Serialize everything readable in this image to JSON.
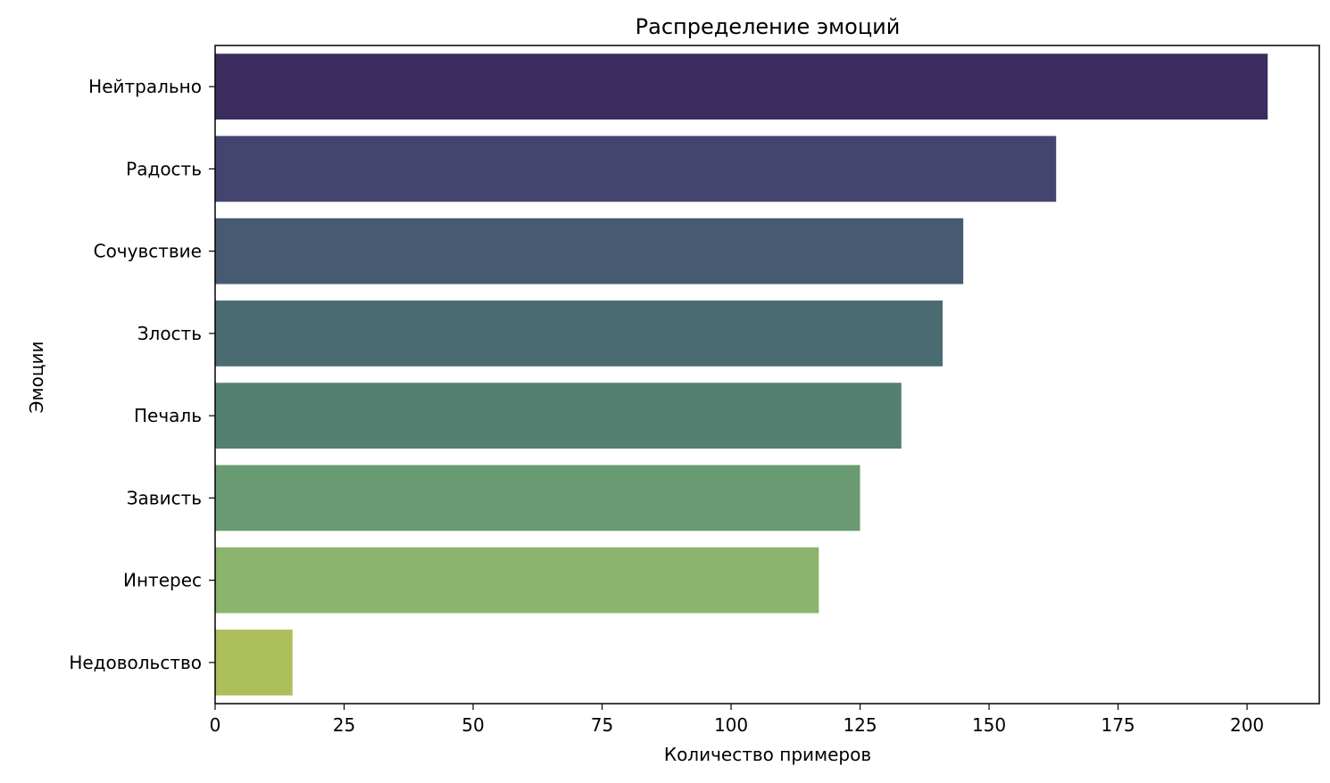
{
  "chart_data": {
    "type": "bar",
    "orientation": "horizontal",
    "title": "Распределение эмоций",
    "xlabel": "Количество примеров",
    "ylabel": "Эмоции",
    "categories": [
      "Нейтрально",
      "Радость",
      "Сочувствие",
      "Злость",
      "Печаль",
      "Зависть",
      "Интерес",
      "Недовольство"
    ],
    "values": [
      204,
      163,
      145,
      141,
      133,
      125,
      117,
      15
    ],
    "colors": [
      "#3c2d5e",
      "#43456f",
      "#465b72",
      "#4a6b72",
      "#538071",
      "#6a9a72",
      "#8bb46c",
      "#adbf5b"
    ],
    "xlim": [
      0,
      214
    ],
    "xticks": [
      0,
      25,
      50,
      75,
      100,
      125,
      150,
      175,
      200
    ],
    "grid": false,
    "legend": "none"
  }
}
